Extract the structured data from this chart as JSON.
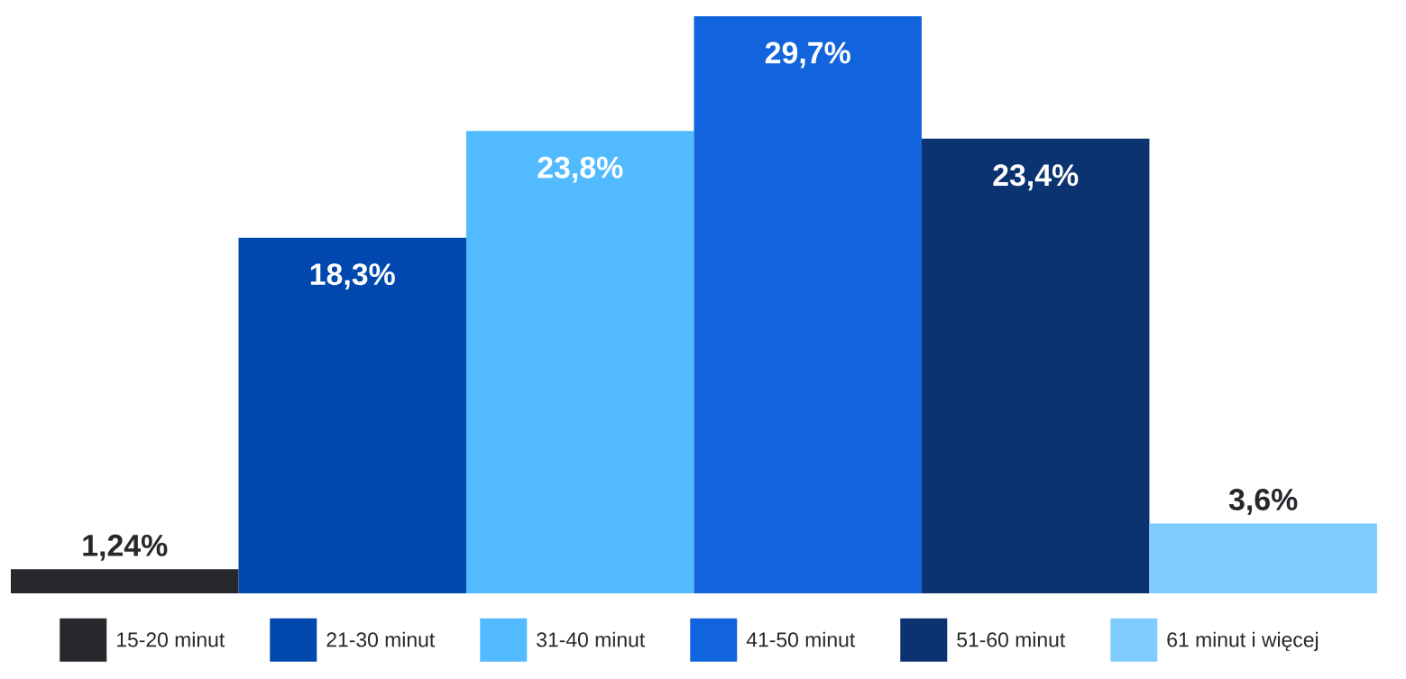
{
  "chart_data": {
    "type": "bar",
    "categories": [
      null
    ],
    "series": [
      {
        "name": "15-20 minut",
        "color": "#26282c",
        "values": [
          1.24
        ],
        "value_labels": [
          "1,24%"
        ]
      },
      {
        "name": "21-30 minut",
        "color": "#0048ae",
        "values": [
          18.3
        ],
        "value_labels": [
          "18,3%"
        ]
      },
      {
        "name": "31-40 minut",
        "color": "#52bbff",
        "values": [
          23.8
        ],
        "value_labels": [
          "23,8%"
        ]
      },
      {
        "name": "41-50 minut",
        "color": "#1264dd",
        "values": [
          29.7
        ],
        "value_labels": [
          "29,7%"
        ]
      },
      {
        "name": "51-60 minut",
        "color": "#0a3370",
        "values": [
          23.4
        ],
        "value_labels": [
          "23,4%"
        ]
      },
      {
        "name": "61 minut i więcej",
        "color": "#7fcdff",
        "values": [
          3.6
        ],
        "value_labels": [
          "3,6%"
        ]
      }
    ],
    "legend": "bottom"
  }
}
